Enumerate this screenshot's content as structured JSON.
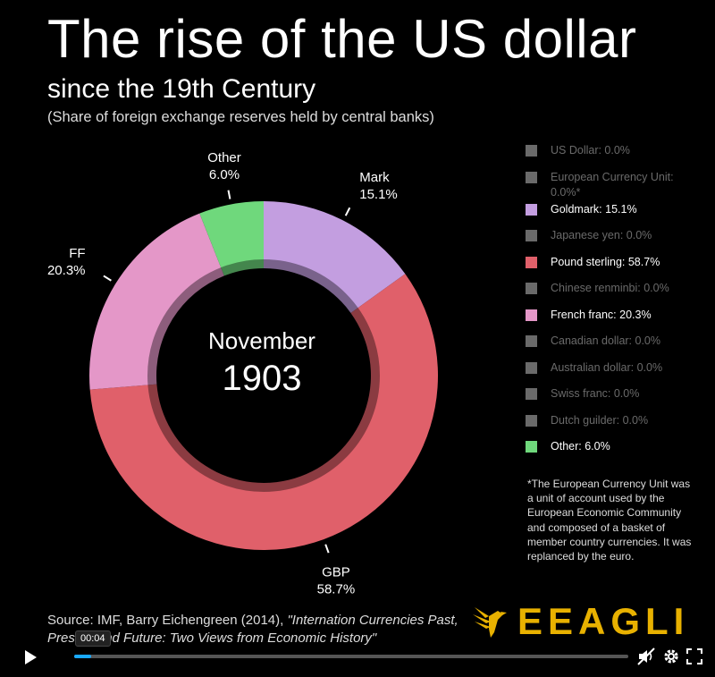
{
  "title": "The rise of the US dollar",
  "subtitle": "since the 19th Century",
  "description": "(Share of foreign exchange reserves held by central banks)",
  "center_label": {
    "month": "November",
    "year": "1903"
  },
  "chart_data": {
    "type": "pie",
    "subtype": "donut",
    "slices": [
      {
        "label": "Mark",
        "value": 15.1,
        "value_text": "15.1%",
        "color": "#c39ee0"
      },
      {
        "label": "GBP",
        "value": 58.7,
        "value_text": "58.7%",
        "color": "#e0606a"
      },
      {
        "label": "FF",
        "value": 20.3,
        "value_text": "20.3%",
        "color": "#e497c8"
      },
      {
        "label": "Other",
        "value": 6.0,
        "value_text": "6.0%",
        "color": "#6fd87c"
      }
    ]
  },
  "legend": [
    {
      "text": "US Dollar: 0.0%",
      "color": "#6a6a6a",
      "active": false
    },
    {
      "text": "European Currency Unit: 0.0%*",
      "color": "#6a6a6a",
      "active": false
    },
    {
      "text": "Goldmark: 15.1%",
      "color": "#c39ee0",
      "active": true
    },
    {
      "text": "Japanese yen: 0.0%",
      "color": "#6a6a6a",
      "active": false
    },
    {
      "text": "Pound sterling: 58.7%",
      "color": "#e0606a",
      "active": true
    },
    {
      "text": "Chinese renminbi: 0.0%",
      "color": "#6a6a6a",
      "active": false
    },
    {
      "text": "French franc: 20.3%",
      "color": "#e497c8",
      "active": true
    },
    {
      "text": "Canadian dollar: 0.0%",
      "color": "#6a6a6a",
      "active": false
    },
    {
      "text": "Australian dollar: 0.0%",
      "color": "#6a6a6a",
      "active": false
    },
    {
      "text": "Swiss franc: 0.0%",
      "color": "#6a6a6a",
      "active": false
    },
    {
      "text": "Dutch guilder: 0.0%",
      "color": "#6a6a6a",
      "active": false
    },
    {
      "text": "Other: 6.0%",
      "color": "#6fd87c",
      "active": true
    }
  ],
  "footnote": "*The European Currency Unit was a unit of account used by the European Economic Community and composed of a basket of member country currencies. It was replanced by the euro.",
  "source": {
    "prefix": "Source: IMF, Barry Eichengreen (2014), ",
    "italic": "\"Internation Currencies Past, Present and Future: Two Views from Economic History\""
  },
  "logo": {
    "text": "EEAGLI",
    "color": "#e8b100"
  },
  "player": {
    "time": "00:04",
    "progress": 0.03,
    "accent": "#19a9ff"
  }
}
